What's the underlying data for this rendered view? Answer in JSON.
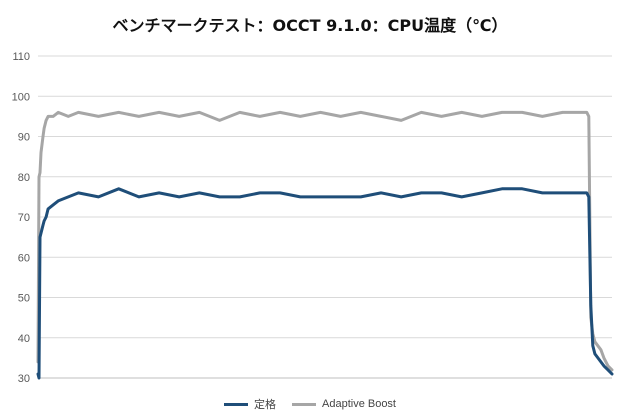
{
  "chart_data": {
    "type": "line",
    "title": "ベンチマークテスト：OCCT 9.1.0：CPU温度（℃）",
    "ylim": [
      30,
      110
    ],
    "yticks": [
      30,
      40,
      50,
      60,
      70,
      80,
      90,
      100,
      110
    ],
    "grid": true,
    "legend_position": "bottom",
    "x": [
      0,
      1,
      2,
      3,
      4,
      5,
      6,
      8,
      10,
      15,
      20,
      30,
      40,
      60,
      80,
      100,
      120,
      140,
      160,
      180,
      200,
      220,
      240,
      260,
      280,
      300,
      320,
      340,
      360,
      380,
      400,
      420,
      440,
      460,
      480,
      500,
      520,
      540,
      542,
      544,
      546,
      548,
      550,
      552,
      555,
      558,
      561,
      565,
      569
    ],
    "series": [
      {
        "name": "定格",
        "color": "#1f4e79",
        "values": [
          31,
          30,
          65,
          66,
          67,
          68,
          69,
          70,
          72,
          73,
          74,
          75,
          76,
          75,
          77,
          75,
          76,
          75,
          76,
          75,
          75,
          76,
          76,
          75,
          75,
          75,
          75,
          76,
          75,
          76,
          76,
          75,
          76,
          77,
          77,
          76,
          76,
          76,
          76,
          76,
          75,
          48,
          38,
          36,
          35,
          34,
          33,
          32,
          31
        ]
      },
      {
        "name": "Adaptive Boost",
        "color": "#a6a6a6",
        "values": [
          34,
          80,
          81,
          86,
          88,
          90,
          92,
          94,
          95,
          95,
          96,
          95,
          96,
          95,
          96,
          95,
          96,
          95,
          96,
          94,
          96,
          95,
          96,
          95,
          96,
          95,
          96,
          95,
          94,
          96,
          95,
          96,
          95,
          96,
          96,
          95,
          96,
          96,
          96,
          96,
          95,
          45,
          41,
          39,
          38,
          37,
          35,
          33,
          32
        ]
      }
    ]
  }
}
